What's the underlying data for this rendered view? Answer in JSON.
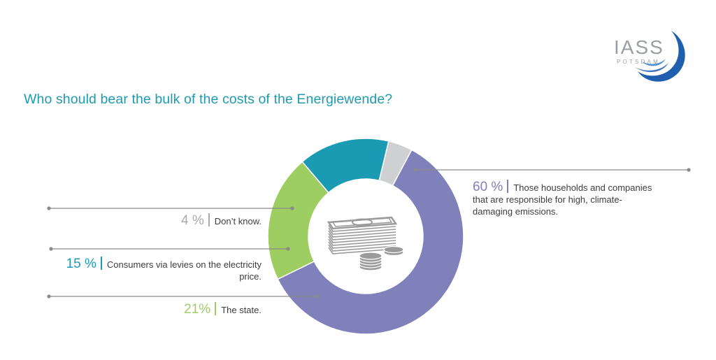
{
  "logo": {
    "name": "IASS",
    "subtitle": "POTSDAM"
  },
  "title": "Who should bear the bulk of the costs of the Energiewende?",
  "colors": {
    "title": "#1f9ab1",
    "households": "#8080bb",
    "dont_know": "#cfd0d2",
    "consumers": "#1a9ab3",
    "state": "#9ecd62",
    "connector": "#8a8a8a"
  },
  "center_icon": "money-banknotes-coins-icon",
  "labels": {
    "households": {
      "pct": "60 %",
      "text": "Those households and companies that are responsible for high, climate-damaging emissions."
    },
    "dont_know": {
      "pct": "4 %",
      "text": "Don’t know."
    },
    "consumers": {
      "pct": "15 %",
      "text": "Consumers via levies on the electricity price."
    },
    "state": {
      "pct": "21%",
      "text": "The state."
    }
  },
  "chart_data": {
    "type": "pie",
    "subtype": "donut",
    "title": "Who should bear the bulk of the costs of the Energiewende?",
    "categories": [
      "Those households and companies that are responsible for high, climate-damaging emissions.",
      "The state.",
      "Consumers via levies on the electricity price.",
      "Don’t know."
    ],
    "values": [
      60,
      21,
      15,
      4
    ],
    "unit": "%",
    "colors": [
      "#8080bb",
      "#9ecd62",
      "#1a9ab3",
      "#cfd0d2"
    ],
    "legend": "callout labels with leader lines",
    "start_angle_deg": -62,
    "direction": "clockwise"
  }
}
